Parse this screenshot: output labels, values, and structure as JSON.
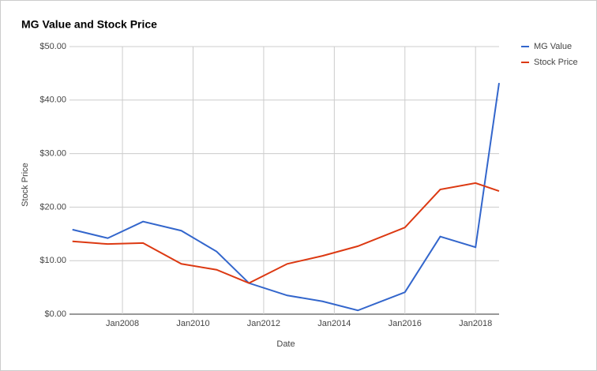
{
  "chart_data": {
    "type": "line",
    "title": "MG Value and Stock Price",
    "x_label": "Date",
    "y_label": "Stock Price",
    "x": [
      "2006-08",
      "2007-08",
      "2008-08",
      "2009-09",
      "2010-09",
      "2011-08",
      "2012-09",
      "2013-09",
      "2014-09",
      "2016-01",
      "2017-01",
      "2018-01",
      "2018-09"
    ],
    "series": [
      {
        "name": "MG Value",
        "color": "#3366cc",
        "values": [
          15.8,
          14.2,
          17.3,
          15.6,
          11.7,
          5.8,
          3.5,
          2.4,
          0.7,
          4.1,
          14.5,
          12.5,
          43.2
        ]
      },
      {
        "name": "Stock Price",
        "color": "#dc3912",
        "values": [
          13.6,
          13.1,
          13.3,
          9.4,
          8.3,
          5.8,
          9.4,
          10.9,
          12.7,
          16.2,
          23.3,
          24.5,
          23.0
        ]
      }
    ],
    "xlim": [
      "2006-07",
      "2018-09"
    ],
    "xticks": [
      {
        "value": "2008-01",
        "label": "Jan2008"
      },
      {
        "value": "2010-01",
        "label": "Jan2010"
      },
      {
        "value": "2012-01",
        "label": "Jan2012"
      },
      {
        "value": "2014-01",
        "label": "Jan2014"
      },
      {
        "value": "2016-01",
        "label": "Jan2016"
      },
      {
        "value": "2018-01",
        "label": "Jan2018"
      }
    ],
    "ylim": [
      0,
      50
    ],
    "yticks": [
      {
        "value": 0,
        "label": "$0.00"
      },
      {
        "value": 10,
        "label": "$10.00"
      },
      {
        "value": 20,
        "label": "$20.00"
      },
      {
        "value": 30,
        "label": "$30.00"
      },
      {
        "value": 40,
        "label": "$40.00"
      },
      {
        "value": 50,
        "label": "$50.00"
      }
    ],
    "grid": true,
    "legend": "right"
  }
}
